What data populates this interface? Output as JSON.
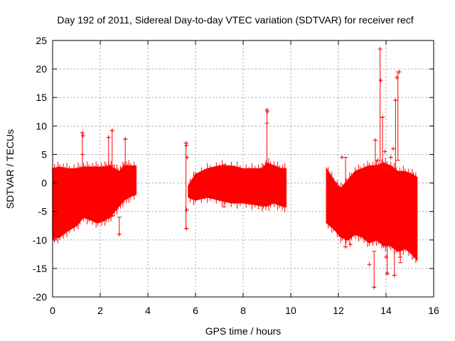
{
  "chart_data": {
    "type": "scatter",
    "title": "Day 192 of 2011, Sidereal Day-to-day VTEC variation (SDTVAR) for receiver recf",
    "xlabel": "GPS time / hours",
    "ylabel": "SDTVAR / TECUs",
    "xlim": [
      0,
      16
    ],
    "ylim": [
      -20,
      25
    ],
    "x_ticks": [
      0,
      2,
      4,
      6,
      8,
      10,
      12,
      14,
      16
    ],
    "y_ticks": [
      -20,
      -15,
      -10,
      -5,
      0,
      5,
      10,
      15,
      20,
      25
    ],
    "x_tick_labels": [
      "0",
      "2",
      "4",
      "6",
      "8",
      "10",
      "12",
      "14",
      "16"
    ],
    "y_tick_labels": [
      "-20",
      "-15",
      "-10",
      "-5",
      "0",
      "5",
      "10",
      "15",
      "20",
      "25"
    ],
    "grid": true,
    "marker": "+",
    "series_color": "#ff0000",
    "bands": [
      {
        "name": "segment-1",
        "x": [
          0.0,
          0.3,
          0.6,
          1.0,
          1.3,
          1.6,
          1.9,
          2.2,
          2.4,
          2.6,
          2.8,
          3.0,
          3.2,
          3.5
        ],
        "upper": [
          2.5,
          2.8,
          2.5,
          2.5,
          2.8,
          2.8,
          2.8,
          2.8,
          3.0,
          2.5,
          2.0,
          3.0,
          3.0,
          3.0
        ],
        "lower": [
          -9.8,
          -9.5,
          -8.5,
          -7.5,
          -6.0,
          -6.5,
          -7.0,
          -6.5,
          -6.0,
          -5.0,
          -4.0,
          -3.0,
          -2.5,
          -2.0
        ]
      },
      {
        "name": "segment-2",
        "x": [
          5.7,
          6.0,
          6.5,
          7.0,
          7.5,
          8.0,
          8.5,
          8.8,
          9.0,
          9.3,
          9.6,
          9.8
        ],
        "upper": [
          -0.5,
          1.5,
          2.5,
          3.0,
          3.0,
          2.5,
          2.5,
          2.5,
          3.5,
          3.0,
          2.5,
          2.5
        ],
        "lower": [
          -2.5,
          -3.0,
          -2.5,
          -3.0,
          -3.5,
          -3.5,
          -3.8,
          -4.0,
          -4.0,
          -3.5,
          -4.0,
          -4.2
        ]
      },
      {
        "name": "segment-3",
        "x": [
          11.5,
          11.8,
          12.1,
          12.4,
          12.7,
          13.0,
          13.3,
          13.6,
          13.9,
          14.2,
          14.5,
          14.8,
          15.1,
          15.3
        ],
        "upper": [
          2.5,
          0.5,
          -1.0,
          0.5,
          2.0,
          2.5,
          3.0,
          3.0,
          3.5,
          3.0,
          2.0,
          2.0,
          1.5,
          1.0
        ],
        "lower": [
          -7.0,
          -8.0,
          -9.5,
          -10.0,
          -9.0,
          -9.5,
          -10.5,
          -10.0,
          -11.0,
          -11.0,
          -12.0,
          -11.5,
          -12.5,
          -13.5
        ]
      }
    ],
    "spikes": [
      {
        "x": 1.25,
        "y_low": 2.0,
        "y_high": 8.8
      },
      {
        "x": 2.35,
        "y_low": 3.0,
        "y_high": 8.0
      },
      {
        "x": 2.5,
        "y_low": 3.0,
        "y_high": 9.2
      },
      {
        "x": 3.05,
        "y_low": 3.0,
        "y_high": 7.7
      },
      {
        "x": 2.5,
        "y_low": -5.8,
        "y_high": -3.0
      },
      {
        "x": 2.8,
        "y_low": -9.0,
        "y_high": -6.0
      },
      {
        "x": 5.6,
        "y_low": -8.0,
        "y_high": 7.0
      },
      {
        "x": 9.0,
        "y_low": 3.5,
        "y_high": 12.8
      },
      {
        "x": 7.2,
        "y_low": -4.2,
        "y_high": 3.2
      },
      {
        "x": 12.3,
        "y_low": -11.2,
        "y_high": 4.5
      },
      {
        "x": 13.5,
        "y_low": -18.3,
        "y_high": -12.0
      },
      {
        "x": 13.55,
        "y_low": 3.0,
        "y_high": 7.5
      },
      {
        "x": 13.75,
        "y_low": 2.0,
        "y_high": 23.5
      },
      {
        "x": 13.85,
        "y_low": 3.0,
        "y_high": 11.5
      },
      {
        "x": 14.05,
        "y_low": -16.0,
        "y_high": -10.0
      },
      {
        "x": 14.35,
        "y_low": -16.2,
        "y_high": -11.0
      },
      {
        "x": 14.4,
        "y_low": 2.0,
        "y_high": 14.5
      },
      {
        "x": 14.5,
        "y_low": 4.0,
        "y_high": 19.5
      },
      {
        "x": 14.6,
        "y_low": -14.0,
        "y_high": -11.0
      }
    ],
    "points": [
      [
        1.25,
        8.8
      ],
      [
        1.28,
        8.3
      ],
      [
        1.25,
        5.0
      ],
      [
        2.35,
        8.0
      ],
      [
        2.5,
        9.2
      ],
      [
        3.05,
        7.7
      ],
      [
        2.5,
        -5.7
      ],
      [
        2.8,
        -9.0
      ],
      [
        5.6,
        7.0
      ],
      [
        5.62,
        6.6
      ],
      [
        5.65,
        4.5
      ],
      [
        5.63,
        -4.7
      ],
      [
        5.62,
        -8.0
      ],
      [
        9.0,
        12.8
      ],
      [
        9.02,
        12.5
      ],
      [
        9.0,
        10.5
      ],
      [
        12.15,
        4.5
      ],
      [
        12.3,
        -11.2
      ],
      [
        12.5,
        -10.8
      ],
      [
        13.5,
        -18.3
      ],
      [
        13.3,
        -14.3
      ],
      [
        13.45,
        2.5
      ],
      [
        13.55,
        7.5
      ],
      [
        13.65,
        4.0
      ],
      [
        13.75,
        23.5
      ],
      [
        13.78,
        18.0
      ],
      [
        13.85,
        11.5
      ],
      [
        13.95,
        5.5
      ],
      [
        14.05,
        -15.8
      ],
      [
        14.0,
        -13.0
      ],
      [
        14.15,
        -11.0
      ],
      [
        14.35,
        -16.2
      ],
      [
        14.4,
        14.5
      ],
      [
        14.45,
        18.5
      ],
      [
        14.55,
        19.5
      ],
      [
        14.6,
        -13.0
      ],
      [
        14.7,
        -11.5
      ],
      [
        14.3,
        6.0
      ],
      [
        14.2,
        4.5
      ],
      [
        13.9,
        -11.0
      ]
    ]
  }
}
